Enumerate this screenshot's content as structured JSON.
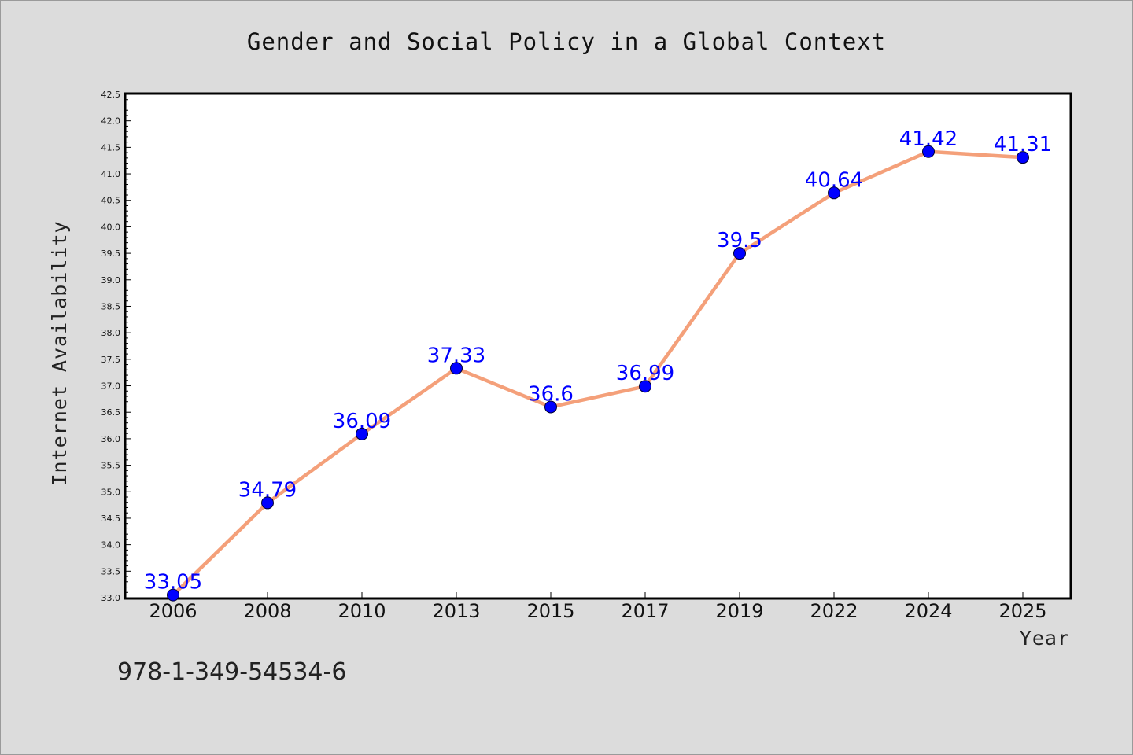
{
  "chart_data": {
    "type": "line",
    "title": "Gender and Social Policy in a Global Context",
    "xlabel": "Year",
    "ylabel": "Internet Availability",
    "categories": [
      "2006",
      "2008",
      "2010",
      "2013",
      "2015",
      "2017",
      "2019",
      "2022",
      "2024",
      "2025"
    ],
    "series": [
      {
        "values": [
          33.05,
          34.79,
          36.09,
          37.33,
          36.6,
          36.99,
          39.5,
          40.64,
          41.42,
          41.31
        ],
        "labels": [
          "33.05",
          "34.79",
          "36.09",
          "37.33",
          "36.6",
          "36.99",
          "39.5",
          "40.64",
          "41.42",
          "41.31"
        ],
        "line_color": "#f4a07a",
        "marker_color": "#0000ff"
      }
    ],
    "ylim": [
      33.0,
      42.5
    ],
    "ytick_step": 0.5,
    "grid": false,
    "legend": "none",
    "label_color": "#0000ff"
  },
  "footnote": "978-1-349-54534-6",
  "colors": {
    "background": "#dcdcdc",
    "plot_background": "#ffffff",
    "line": "#f4a07a",
    "marker": "#0000ff",
    "data_label": "#0000ff"
  }
}
